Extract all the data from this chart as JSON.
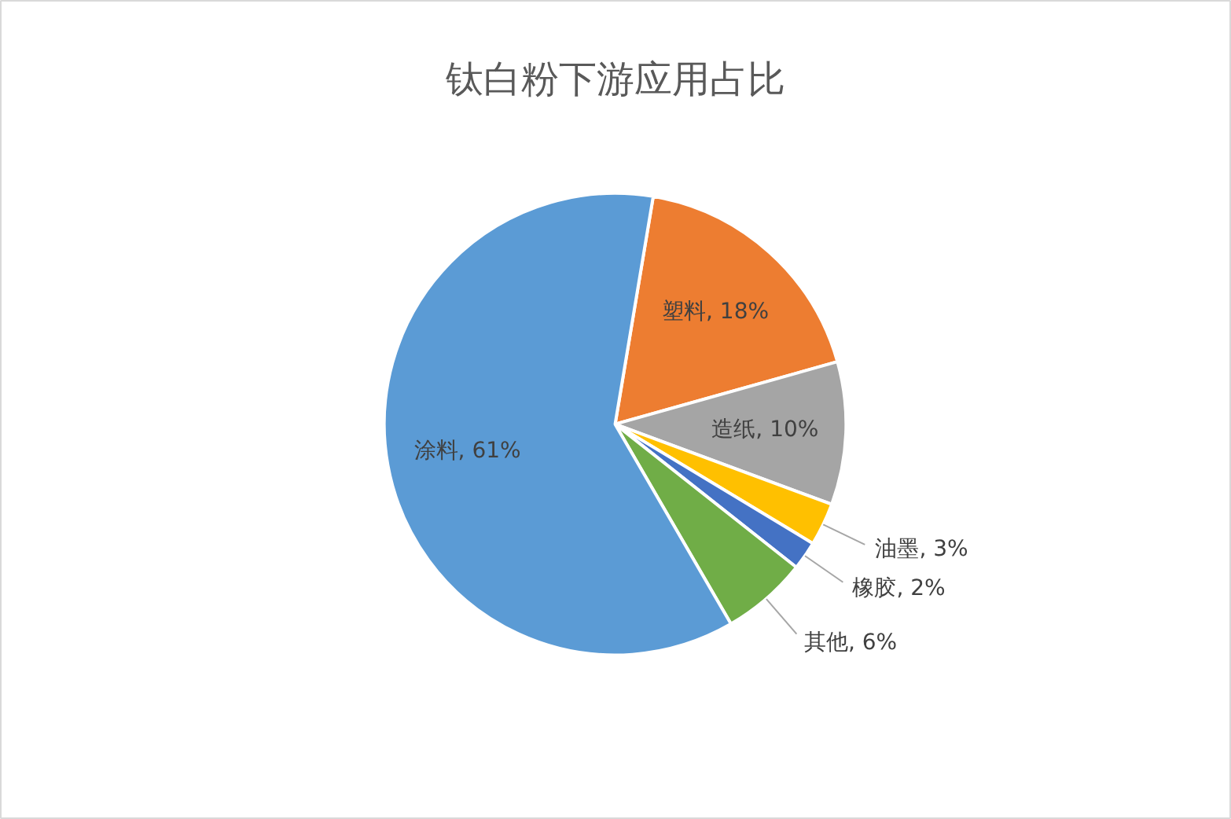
{
  "chart_data": {
    "type": "pie",
    "title": "钛白粉下游应用占比",
    "categories": [
      "塑料",
      "造纸",
      "油墨",
      "橡胶",
      "其他",
      "涂料"
    ],
    "values": [
      18,
      10,
      3,
      2,
      6,
      61
    ],
    "colors": [
      "#ed7d31",
      "#a5a5a5",
      "#ffc000",
      "#4472c4",
      "#70ad47",
      "#5b9bd5"
    ],
    "value_labels": [
      "18%",
      "10%",
      "3%",
      "2%",
      "6%",
      "61%"
    ]
  }
}
